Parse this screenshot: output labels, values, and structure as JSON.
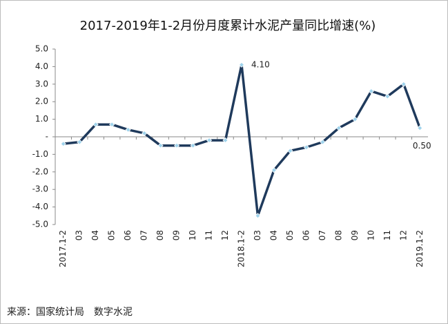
{
  "chart_data": {
    "type": "line",
    "title": "2017-2019年1-2月份月度累计水泥产量同比增速(%)",
    "note": "来源：国家统计局　数字水泥",
    "categories": [
      "2017.1-2",
      "03",
      "04",
      "05",
      "06",
      "07",
      "08",
      "09",
      "10",
      "11",
      "12",
      "2018.1-2",
      "03",
      "04",
      "05",
      "06",
      "07",
      "08",
      "09",
      "10",
      "11",
      "12",
      "2019.1-2"
    ],
    "series": [
      {
        "name": "水泥产量同比增速",
        "color": "#1f3a5c",
        "values": [
          -0.4,
          -0.3,
          0.7,
          0.7,
          0.4,
          0.2,
          -0.5,
          -0.5,
          -0.5,
          -0.2,
          -0.2,
          4.1,
          -4.5,
          -1.9,
          -0.8,
          -0.6,
          -0.3,
          0.5,
          1.0,
          2.6,
          2.3,
          3.0,
          0.5
        ],
        "value_labels": [
          null,
          null,
          null,
          null,
          null,
          null,
          null,
          null,
          null,
          null,
          null,
          "4.10",
          null,
          null,
          null,
          null,
          null,
          null,
          null,
          null,
          null,
          null,
          "0.50"
        ]
      }
    ],
    "ylim": [
      -5,
      5
    ],
    "yticks": [
      {
        "value": 5,
        "label": "5.0"
      },
      {
        "value": 4,
        "label": "4.0"
      },
      {
        "value": 3,
        "label": "3.0"
      },
      {
        "value": 2,
        "label": "2.0"
      },
      {
        "value": 1,
        "label": "1.0"
      },
      {
        "value": 0,
        "label": "-"
      },
      {
        "value": -1,
        "label": "-1.0"
      },
      {
        "value": -2,
        "label": "-2.0"
      },
      {
        "value": -3,
        "label": "-3.0"
      },
      {
        "value": -4,
        "label": "-4.0"
      },
      {
        "value": -5,
        "label": "-5.0"
      }
    ]
  }
}
